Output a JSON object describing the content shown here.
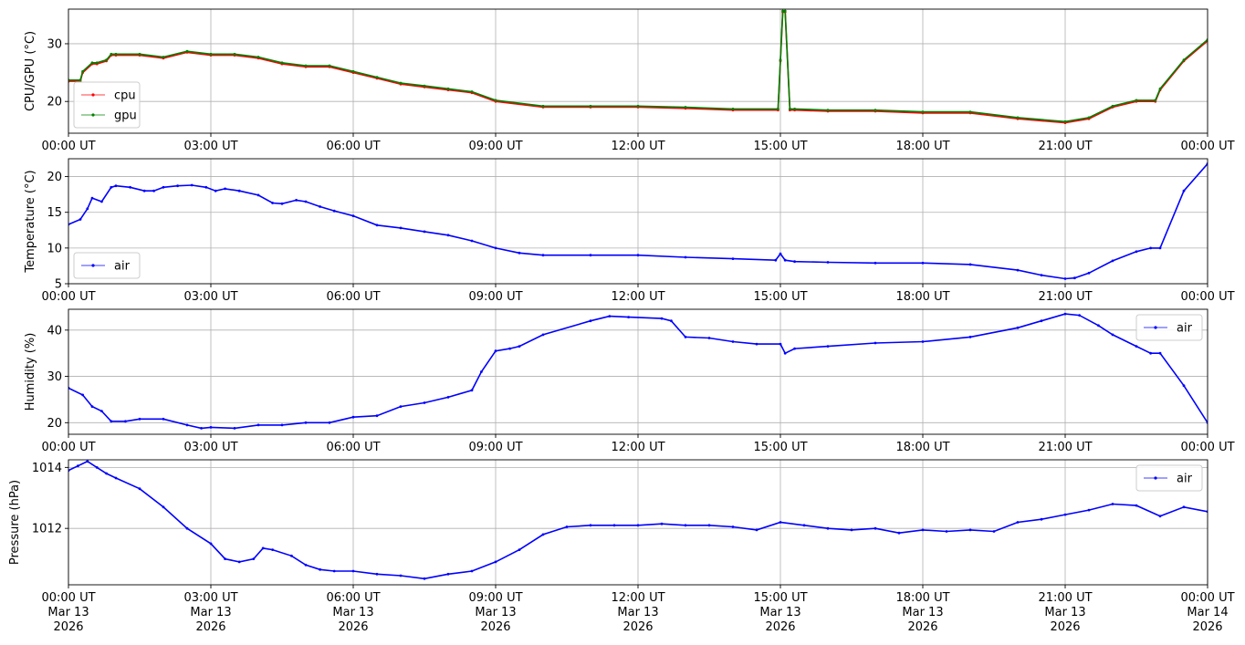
{
  "chart_data": [
    {
      "type": "line",
      "ylabel": "CPU/GPU (°C)",
      "xlabel": "",
      "title": "",
      "xlim": [
        0,
        24
      ],
      "ylim": [
        14.5,
        36
      ],
      "yticks": [
        20,
        30
      ],
      "x_tick_labels": [
        "00:00 UT",
        "03:00 UT",
        "06:00 UT",
        "09:00 UT",
        "12:00 UT",
        "15:00 UT",
        "18:00 UT",
        "21:00 UT",
        "00:00 UT"
      ],
      "grid": true,
      "legend_position": "lower-left",
      "series": [
        {
          "name": "cpu",
          "color": "#ff0000",
          "x": [
            0,
            0.25,
            0.3,
            0.5,
            0.6,
            0.8,
            0.9,
            1.0,
            1.5,
            2.0,
            2.5,
            3.0,
            3.5,
            4.0,
            4.5,
            5.0,
            5.5,
            6.0,
            6.5,
            7.0,
            7.5,
            8.0,
            8.5,
            9.0,
            10.0,
            11.0,
            12.0,
            13.0,
            14.0,
            14.95,
            15.0,
            15.05,
            15.1,
            15.2,
            15.3,
            16.0,
            17.0,
            18.0,
            19.0,
            20.0,
            21.0,
            21.5,
            22.0,
            22.5,
            22.9,
            23.0,
            23.5,
            24.0
          ],
          "y": [
            23.5,
            23.5,
            25,
            26.5,
            26.5,
            27,
            28,
            28,
            28,
            27.5,
            28.5,
            28,
            28,
            27.5,
            26.5,
            26,
            26,
            25,
            24,
            23,
            22.5,
            22,
            21.5,
            20,
            19,
            19,
            19,
            18.8,
            18.5,
            18.5,
            27,
            35.5,
            35.5,
            18.5,
            18.5,
            18.3,
            18.3,
            18,
            18,
            17,
            16.3,
            17,
            19,
            20,
            20,
            22,
            27,
            30.5
          ]
        },
        {
          "name": "gpu",
          "color": "#008000",
          "x": [
            0,
            0.25,
            0.3,
            0.5,
            0.6,
            0.8,
            0.9,
            1.0,
            1.5,
            2.0,
            2.5,
            3.0,
            3.5,
            4.0,
            4.5,
            5.0,
            5.5,
            6.0,
            6.5,
            7.0,
            7.5,
            8.0,
            8.5,
            9.0,
            10.0,
            11.0,
            12.0,
            13.0,
            14.0,
            14.95,
            15.0,
            15.05,
            15.1,
            15.2,
            15.3,
            16.0,
            17.0,
            18.0,
            19.0,
            20.0,
            21.0,
            21.5,
            22.0,
            22.5,
            22.9,
            23.0,
            23.5,
            24.0
          ],
          "y": [
            23.7,
            23.7,
            25.2,
            26.7,
            26.7,
            27.2,
            28.2,
            28.2,
            28.2,
            27.7,
            28.7,
            28.2,
            28.2,
            27.7,
            26.7,
            26.2,
            26.2,
            25.2,
            24.2,
            23.2,
            22.7,
            22.2,
            21.7,
            20.2,
            19.2,
            19.2,
            19.2,
            19,
            18.7,
            18.7,
            27.2,
            35.7,
            35.7,
            18.7,
            18.7,
            18.5,
            18.5,
            18.2,
            18.2,
            17.2,
            16.5,
            17.2,
            19.2,
            20.2,
            20.2,
            22.2,
            27.2,
            30.7
          ]
        }
      ]
    },
    {
      "type": "line",
      "ylabel": "Temperature (°C)",
      "xlabel": "",
      "title": "",
      "xlim": [
        0,
        24
      ],
      "ylim": [
        5,
        22.5
      ],
      "yticks": [
        5,
        10,
        15,
        20
      ],
      "x_tick_labels": [
        "00:00 UT",
        "03:00 UT",
        "06:00 UT",
        "09:00 UT",
        "12:00 UT",
        "15:00 UT",
        "18:00 UT",
        "21:00 UT",
        "00:00 UT"
      ],
      "grid": true,
      "legend_position": "lower-left",
      "series": [
        {
          "name": "air",
          "color": "#0000ff",
          "x": [
            0,
            0.25,
            0.4,
            0.5,
            0.7,
            0.9,
            1.0,
            1.3,
            1.6,
            1.8,
            2.0,
            2.3,
            2.6,
            2.9,
            3.1,
            3.3,
            3.6,
            4.0,
            4.3,
            4.5,
            4.8,
            5.0,
            5.3,
            5.6,
            6.0,
            6.5,
            7.0,
            7.5,
            8.0,
            8.5,
            9.0,
            9.5,
            10.0,
            11.0,
            12.0,
            13.0,
            14.0,
            14.9,
            15.0,
            15.1,
            15.3,
            16.0,
            17.0,
            18.0,
            19.0,
            20.0,
            20.5,
            21.0,
            21.2,
            21.5,
            22.0,
            22.5,
            22.8,
            23.0,
            23.5,
            24.0
          ],
          "y": [
            13.3,
            14,
            15.5,
            17,
            16.5,
            18.5,
            18.7,
            18.5,
            18,
            18,
            18.5,
            18.7,
            18.8,
            18.5,
            18,
            18.3,
            18,
            17.4,
            16.3,
            16.2,
            16.7,
            16.5,
            15.8,
            15.2,
            14.5,
            13.2,
            12.8,
            12.3,
            11.8,
            11,
            10,
            9.3,
            9,
            9,
            9,
            8.7,
            8.5,
            8.3,
            9.2,
            8.3,
            8.1,
            8,
            7.9,
            7.9,
            7.7,
            6.9,
            6.2,
            5.7,
            5.8,
            6.5,
            8.2,
            9.5,
            10,
            10,
            18,
            21.8
          ]
        }
      ]
    },
    {
      "type": "line",
      "ylabel": "Humidity (%)",
      "xlabel": "",
      "title": "",
      "xlim": [
        0,
        24
      ],
      "ylim": [
        17.5,
        44.5
      ],
      "yticks": [
        20,
        30,
        40
      ],
      "x_tick_labels": [
        "00:00 UT",
        "03:00 UT",
        "06:00 UT",
        "09:00 UT",
        "12:00 UT",
        "15:00 UT",
        "18:00 UT",
        "21:00 UT",
        "00:00 UT"
      ],
      "grid": true,
      "legend_position": "upper-right",
      "series": [
        {
          "name": "air",
          "color": "#0000ff",
          "x": [
            0,
            0.3,
            0.5,
            0.7,
            0.9,
            1.2,
            1.5,
            2.0,
            2.5,
            2.8,
            3.0,
            3.5,
            4.0,
            4.5,
            5.0,
            5.5,
            6.0,
            6.5,
            7.0,
            7.5,
            8.0,
            8.5,
            8.7,
            9.0,
            9.3,
            9.5,
            10.0,
            11.0,
            11.4,
            11.8,
            12.5,
            12.7,
            13.0,
            13.5,
            14.0,
            14.5,
            15.0,
            15.1,
            15.3,
            16.0,
            17.0,
            18.0,
            19.0,
            20.0,
            20.5,
            21.0,
            21.3,
            21.7,
            22.0,
            22.5,
            22.8,
            23.0,
            23.5,
            24.0
          ],
          "y": [
            27.5,
            26,
            23.5,
            22.5,
            20.3,
            20.3,
            20.8,
            20.8,
            19.5,
            18.8,
            19,
            18.8,
            19.5,
            19.5,
            20,
            20,
            21.2,
            21.5,
            23.5,
            24.3,
            25.5,
            27,
            31,
            35.5,
            36,
            36.5,
            39,
            42,
            43,
            42.8,
            42.5,
            42,
            38.5,
            38.3,
            37.5,
            37,
            37,
            35,
            36,
            36.5,
            37.2,
            37.5,
            38.5,
            40.5,
            42,
            43.5,
            43.2,
            41,
            39,
            36.5,
            35,
            35,
            28,
            20
          ]
        }
      ]
    },
    {
      "type": "line",
      "ylabel": "Pressure (hPa)",
      "xlabel": "",
      "title": "",
      "xlim": [
        0,
        24
      ],
      "ylim": [
        1010.15,
        1014.25
      ],
      "yticks": [
        1012,
        1014
      ],
      "x_tick_labels": [
        "00:00 UT\nMar 13\n2026",
        "03:00 UT\nMar 13\n2026",
        "06:00 UT\nMar 13\n2026",
        "09:00 UT\nMar 13\n2026",
        "12:00 UT\nMar 13\n2026",
        "15:00 UT\nMar 13\n2026",
        "18:00 UT\nMar 13\n2026",
        "21:00 UT\nMar 13\n2026",
        "00:00 UT\nMar 14\n2026"
      ],
      "grid": true,
      "legend_position": "upper-right",
      "series": [
        {
          "name": "air",
          "color": "#0000ff",
          "x": [
            0,
            0.2,
            0.4,
            0.6,
            0.8,
            1.0,
            1.5,
            2.0,
            2.5,
            3.0,
            3.3,
            3.6,
            3.9,
            4.1,
            4.3,
            4.7,
            5.0,
            5.3,
            5.6,
            6.0,
            6.5,
            7.0,
            7.5,
            8.0,
            8.5,
            9.0,
            9.5,
            10.0,
            10.5,
            11.0,
            11.5,
            12.0,
            12.5,
            13.0,
            13.5,
            14.0,
            14.5,
            15.0,
            15.5,
            16.0,
            16.5,
            17.0,
            17.5,
            18.0,
            18.5,
            19.0,
            19.5,
            20.0,
            20.5,
            21.0,
            21.5,
            22.0,
            22.5,
            23.0,
            23.5,
            24.0
          ],
          "y": [
            1013.9,
            1014.05,
            1014.2,
            1014.0,
            1013.8,
            1013.65,
            1013.3,
            1012.7,
            1012.0,
            1011.5,
            1011.0,
            1010.9,
            1011.0,
            1011.35,
            1011.3,
            1011.1,
            1010.8,
            1010.65,
            1010.6,
            1010.6,
            1010.5,
            1010.45,
            1010.35,
            1010.5,
            1010.6,
            1010.9,
            1011.3,
            1011.8,
            1012.05,
            1012.1,
            1012.1,
            1012.1,
            1012.15,
            1012.1,
            1012.1,
            1012.05,
            1011.95,
            1012.2,
            1012.1,
            1012.0,
            1011.95,
            1012.0,
            1011.85,
            1011.95,
            1011.9,
            1011.95,
            1011.9,
            1012.2,
            1012.3,
            1012.45,
            1012.6,
            1012.8,
            1012.75,
            1012.4,
            1012.7,
            1012.55
          ]
        }
      ]
    }
  ]
}
